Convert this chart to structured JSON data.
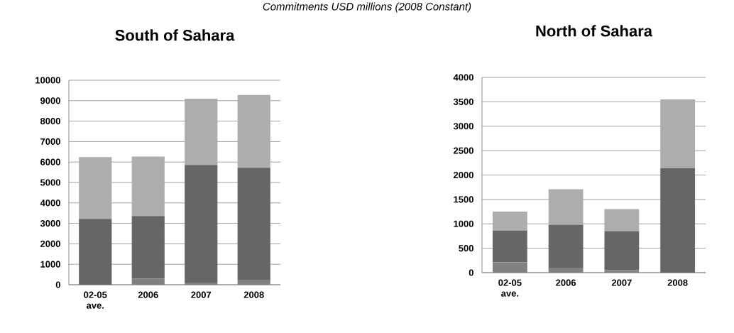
{
  "chart_data": [
    {
      "type": "bar",
      "stacked": true,
      "title": "South of Sahara",
      "annotations": [
        "Commitments USD millions (2008 Constant)"
      ],
      "categories": [
        "02-05 ave.",
        "2006",
        "2007",
        "2008"
      ],
      "series": [
        {
          "color": "#808080",
          "values": [
            null,
            300,
            100,
            240
          ]
        },
        {
          "color": "#666666",
          "values": [
            3220,
            3060,
            5760,
            5480
          ]
        },
        {
          "color": "#adadad",
          "values": [
            3020,
            2910,
            3240,
            3560
          ]
        }
      ],
      "ylim": [
        0,
        10000
      ],
      "yticks": [
        0,
        1000,
        2000,
        3000,
        4000,
        5000,
        6000,
        7000,
        8000,
        9000,
        10000
      ],
      "grid": "y"
    },
    {
      "type": "bar",
      "stacked": true,
      "title": "North of Sahara",
      "categories": [
        "02-05 ave.",
        "2006",
        "2007",
        "2008"
      ],
      "series": [
        {
          "color": "#808080",
          "values": [
            210,
            100,
            50,
            0
          ]
        },
        {
          "color": "#666666",
          "values": [
            650,
            880,
            800,
            2140
          ]
        },
        {
          "color": "#adadad",
          "values": [
            390,
            730,
            450,
            1410
          ]
        }
      ],
      "ylim": [
        0,
        4000
      ],
      "yticks": [
        0,
        500,
        1000,
        1500,
        2000,
        2500,
        3000,
        3500,
        4000
      ],
      "grid": "y"
    }
  ]
}
